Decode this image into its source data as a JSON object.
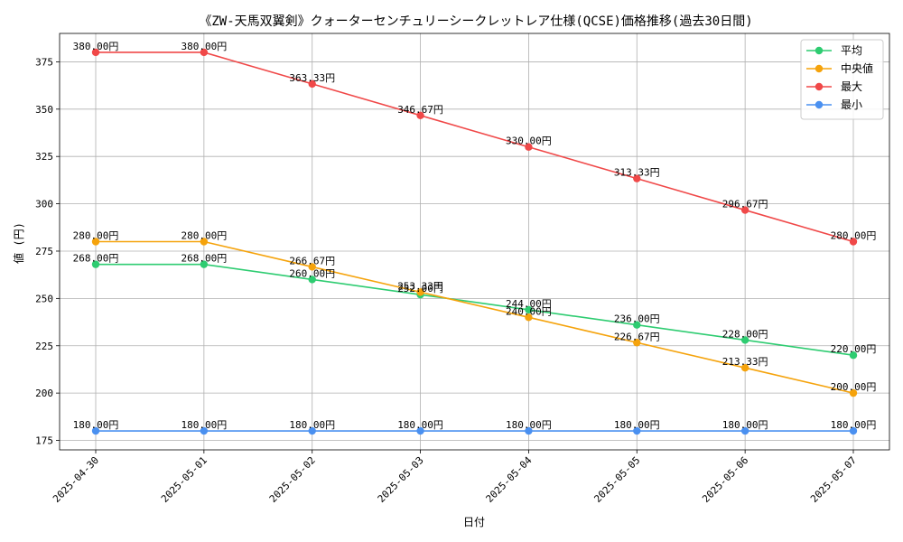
{
  "chart_data": {
    "type": "line",
    "title": "《ZW-天馬双翼剣》クォーターセンチュリーシークレットレア仕様(QCSE)価格推移(過去30日間)",
    "xlabel": "日付",
    "ylabel": "値 (円)",
    "categories": [
      "2025-04-30",
      "2025-05-01",
      "2025-05-02",
      "2025-05-03",
      "2025-05-04",
      "2025-05-05",
      "2025-05-06",
      "2025-05-07"
    ],
    "ylim": [
      170,
      390
    ],
    "yticks": [
      175,
      200,
      225,
      250,
      275,
      300,
      325,
      350,
      375
    ],
    "grid": true,
    "legend_position": "top-right",
    "value_suffix": "円",
    "series": [
      {
        "name": "平均",
        "color": "#2ecc71",
        "values": [
          268.0,
          268.0,
          260.0,
          252.0,
          244.0,
          236.0,
          228.0,
          220.0
        ]
      },
      {
        "name": "中央値",
        "color": "#f5a30c",
        "values": [
          280.0,
          280.0,
          266.67,
          253.33,
          240.0,
          226.67,
          213.33,
          200.0
        ]
      },
      {
        "name": "最大",
        "color": "#f04848",
        "values": [
          380.0,
          380.0,
          363.33,
          346.67,
          330.0,
          313.33,
          296.67,
          280.0
        ]
      },
      {
        "name": "最小",
        "color": "#4a90f0",
        "values": [
          180.0,
          180.0,
          180.0,
          180.0,
          180.0,
          180.0,
          180.0,
          180.0
        ]
      }
    ]
  }
}
